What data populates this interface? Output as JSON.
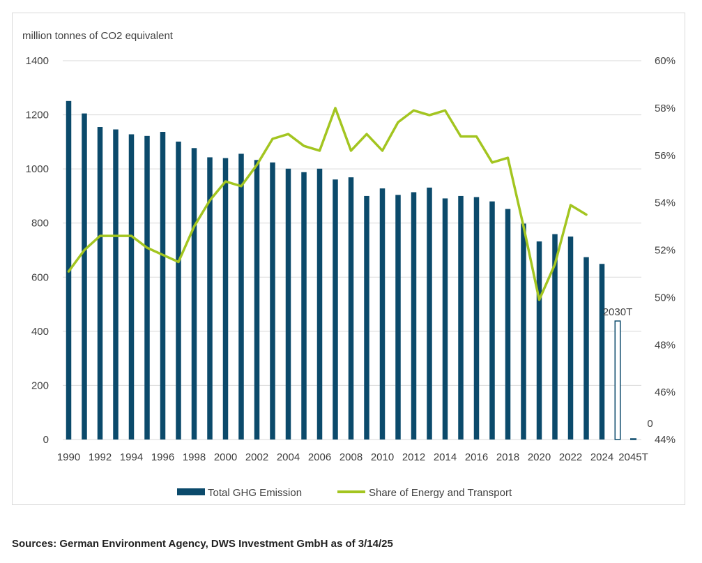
{
  "source_note": "Sources: German Environment Agency, DWS Investment GmbH as of 3/14/25",
  "chart_data": {
    "type": "bar",
    "title": "",
    "ylabel": "million tonnes of CO2 equivalent",
    "ylim": [
      0,
      1400
    ],
    "yticks": [
      0,
      200,
      400,
      600,
      800,
      1000,
      1200,
      1400
    ],
    "y2lim": [
      0.44,
      0.6
    ],
    "y2ticks": [
      "44%",
      "46%",
      "48%",
      "50%",
      "52%",
      "54%",
      "56%",
      "58%",
      "60%"
    ],
    "x_tick_labels": [
      "1990",
      "1992",
      "1994",
      "1996",
      "1998",
      "2000",
      "2002",
      "2004",
      "2006",
      "2008",
      "2010",
      "2012",
      "2014",
      "2016",
      "2018",
      "2020",
      "2022",
      "2024",
      "2045T"
    ],
    "grid": true,
    "legend_position": "bottom",
    "colors": {
      "bars": "#0b4a6b",
      "line": "#a3c520",
      "grid": "#d9d9d9"
    },
    "categories": [
      "1990",
      "1991",
      "1992",
      "1993",
      "1994",
      "1995",
      "1996",
      "1997",
      "1998",
      "1999",
      "2000",
      "2001",
      "2002",
      "2003",
      "2004",
      "2005",
      "2006",
      "2007",
      "2008",
      "2009",
      "2010",
      "2011",
      "2012",
      "2013",
      "2014",
      "2015",
      "2016",
      "2017",
      "2018",
      "2019",
      "2020",
      "2021",
      "2022",
      "2023",
      "2024",
      "2030T",
      "2045T"
    ],
    "series": [
      {
        "name": "Total GHG Emission",
        "type": "bar",
        "axis": "left",
        "values": [
          1251,
          1205,
          1155,
          1146,
          1128,
          1122,
          1137,
          1101,
          1077,
          1043,
          1040,
          1056,
          1033,
          1024,
          1001,
          988,
          1001,
          961,
          969,
          900,
          928,
          904,
          914,
          931,
          891,
          900,
          896,
          880,
          852,
          798,
          732,
          759,
          750,
          674,
          649,
          null,
          null
        ]
      },
      {
        "name": "Share of Energy and Transport",
        "type": "line",
        "axis": "right",
        "values": [
          0.511,
          0.52,
          0.526,
          0.526,
          0.526,
          0.521,
          0.518,
          0.515,
          0.53,
          0.541,
          0.549,
          0.547,
          0.556,
          0.567,
          0.569,
          0.564,
          0.562,
          0.58,
          0.562,
          0.569,
          0.562,
          0.574,
          0.579,
          0.577,
          0.579,
          0.568,
          0.568,
          0.557,
          0.559,
          0.53,
          0.499,
          0.514,
          0.539,
          0.535,
          null,
          null,
          null
        ]
      },
      {
        "name": "",
        "type": "target-bar",
        "axis": "left",
        "values": [
          null,
          null,
          null,
          null,
          null,
          null,
          null,
          null,
          null,
          null,
          null,
          null,
          null,
          null,
          null,
          null,
          null,
          null,
          null,
          null,
          null,
          null,
          null,
          null,
          null,
          null,
          null,
          null,
          null,
          null,
          null,
          null,
          null,
          null,
          null,
          438,
          0
        ]
      }
    ],
    "annotations": [
      {
        "category": "2030T",
        "label": "2030T"
      },
      {
        "category": "2045T",
        "label": "0"
      }
    ]
  }
}
